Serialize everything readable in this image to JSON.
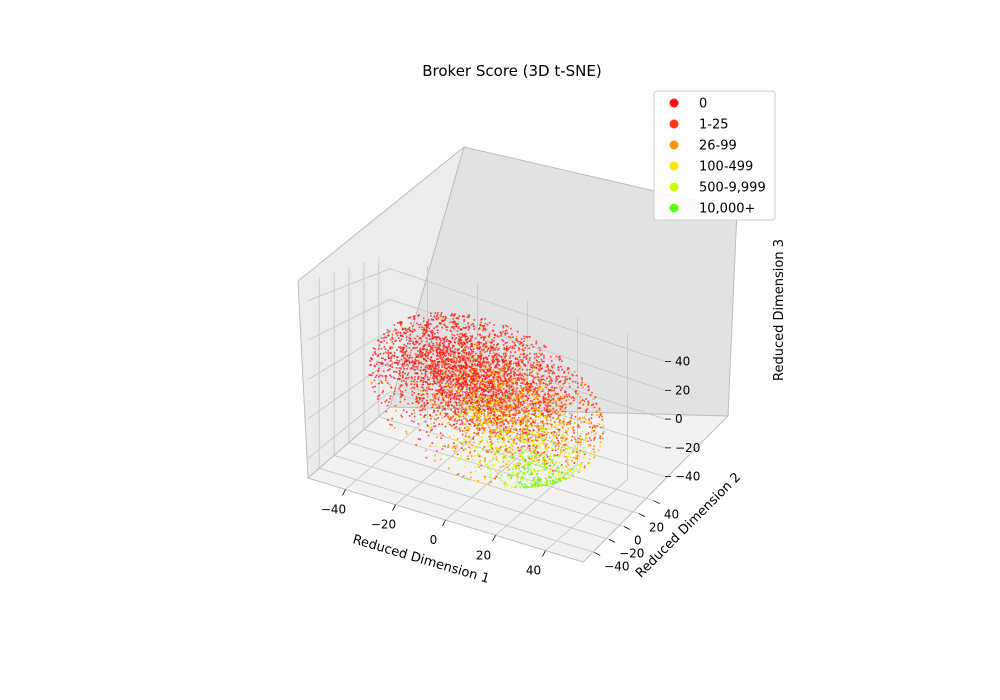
{
  "chart_data": {
    "type": "scatter",
    "projection": "3d",
    "title": "Broker Score (3D t-SNE)",
    "xlabel": "Reduced Dimension 1",
    "ylabel": "Reduced Dimension 2",
    "zlabel": "Reduced Dimension 3",
    "xlim": [
      -55,
      55
    ],
    "ylim": [
      -55,
      55
    ],
    "zlim": [
      -50,
      50
    ],
    "xticks": [
      "−40",
      "−20",
      "0",
      "20",
      "40"
    ],
    "yticks": [
      "−40",
      "−20",
      "0",
      "20",
      "40"
    ],
    "zticks": [
      "−40",
      "−20",
      "0",
      "20",
      "40"
    ],
    "grid": true,
    "legend_position": "top-right",
    "series": [
      {
        "name": "0",
        "color": "#ff1010",
        "approx_count": 5200,
        "center": [
          -10,
          15,
          5
        ],
        "spread": [
          20,
          18,
          17
        ]
      },
      {
        "name": "1-25",
        "color": "#ff3a10",
        "approx_count": 1200,
        "center": [
          0,
          10,
          0
        ],
        "spread": [
          20,
          18,
          17
        ]
      },
      {
        "name": "26-99",
        "color": "#ff9410",
        "approx_count": 1400,
        "center": [
          12,
          -5,
          -3
        ],
        "spread": [
          18,
          18,
          16
        ]
      },
      {
        "name": "100-499",
        "color": "#ffe600",
        "approx_count": 500,
        "center": [
          12,
          -5,
          -8
        ],
        "spread": [
          17,
          18,
          16
        ]
      },
      {
        "name": "500-9,999",
        "color": "#c8ff00",
        "approx_count": 700,
        "center": [
          18,
          -10,
          -22
        ],
        "spread": [
          14,
          14,
          12
        ]
      },
      {
        "name": "10,000+",
        "color": "#5cff10",
        "approx_count": 220,
        "center": [
          22,
          -12,
          -32
        ],
        "spread": [
          8,
          8,
          7
        ]
      }
    ]
  }
}
